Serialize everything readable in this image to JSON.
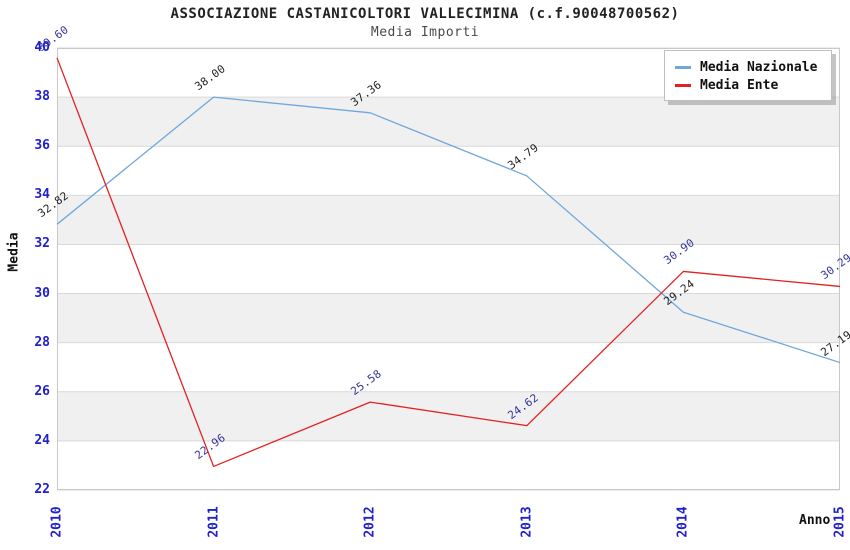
{
  "chart_data": {
    "type": "line",
    "title": "ASSOCIAZIONE CASTANICOLTORI VALLECIMINA (c.f.90048700562)",
    "subtitle": "Media Importi",
    "xlabel": "Anno",
    "ylabel": "Media",
    "x": [
      "2010",
      "2011",
      "2012",
      "2013",
      "2014",
      "2015"
    ],
    "ylim": [
      22,
      40
    ],
    "ytick_step": 2,
    "grid": "horizontal-bands",
    "legend_position": "top-right",
    "value_label_decimals": 2,
    "series": [
      {
        "name": "Media Nazionale",
        "color": "#6FA8DC",
        "label_color": "#222222",
        "values": [
          32.82,
          38.0,
          37.36,
          34.79,
          29.24,
          27.19
        ]
      },
      {
        "name": "Media Ente",
        "color": "#E22222",
        "label_color": "#333399",
        "values": [
          39.6,
          22.96,
          25.58,
          24.62,
          30.9,
          30.29
        ]
      }
    ]
  },
  "colors": {
    "axis_tick_label": "#2020CC",
    "band_fill": "#F0F0F0",
    "grid_line": "#D9D9D9",
    "plot_border": "#C8C8C8",
    "title_text": "#222222",
    "subtitle_text": "#4A4A4A",
    "axis_title_text": "#111111",
    "legend_border": "#C0C0C0",
    "legend_shadow": "#9A9A9A",
    "background": "#FFFFFF"
  }
}
